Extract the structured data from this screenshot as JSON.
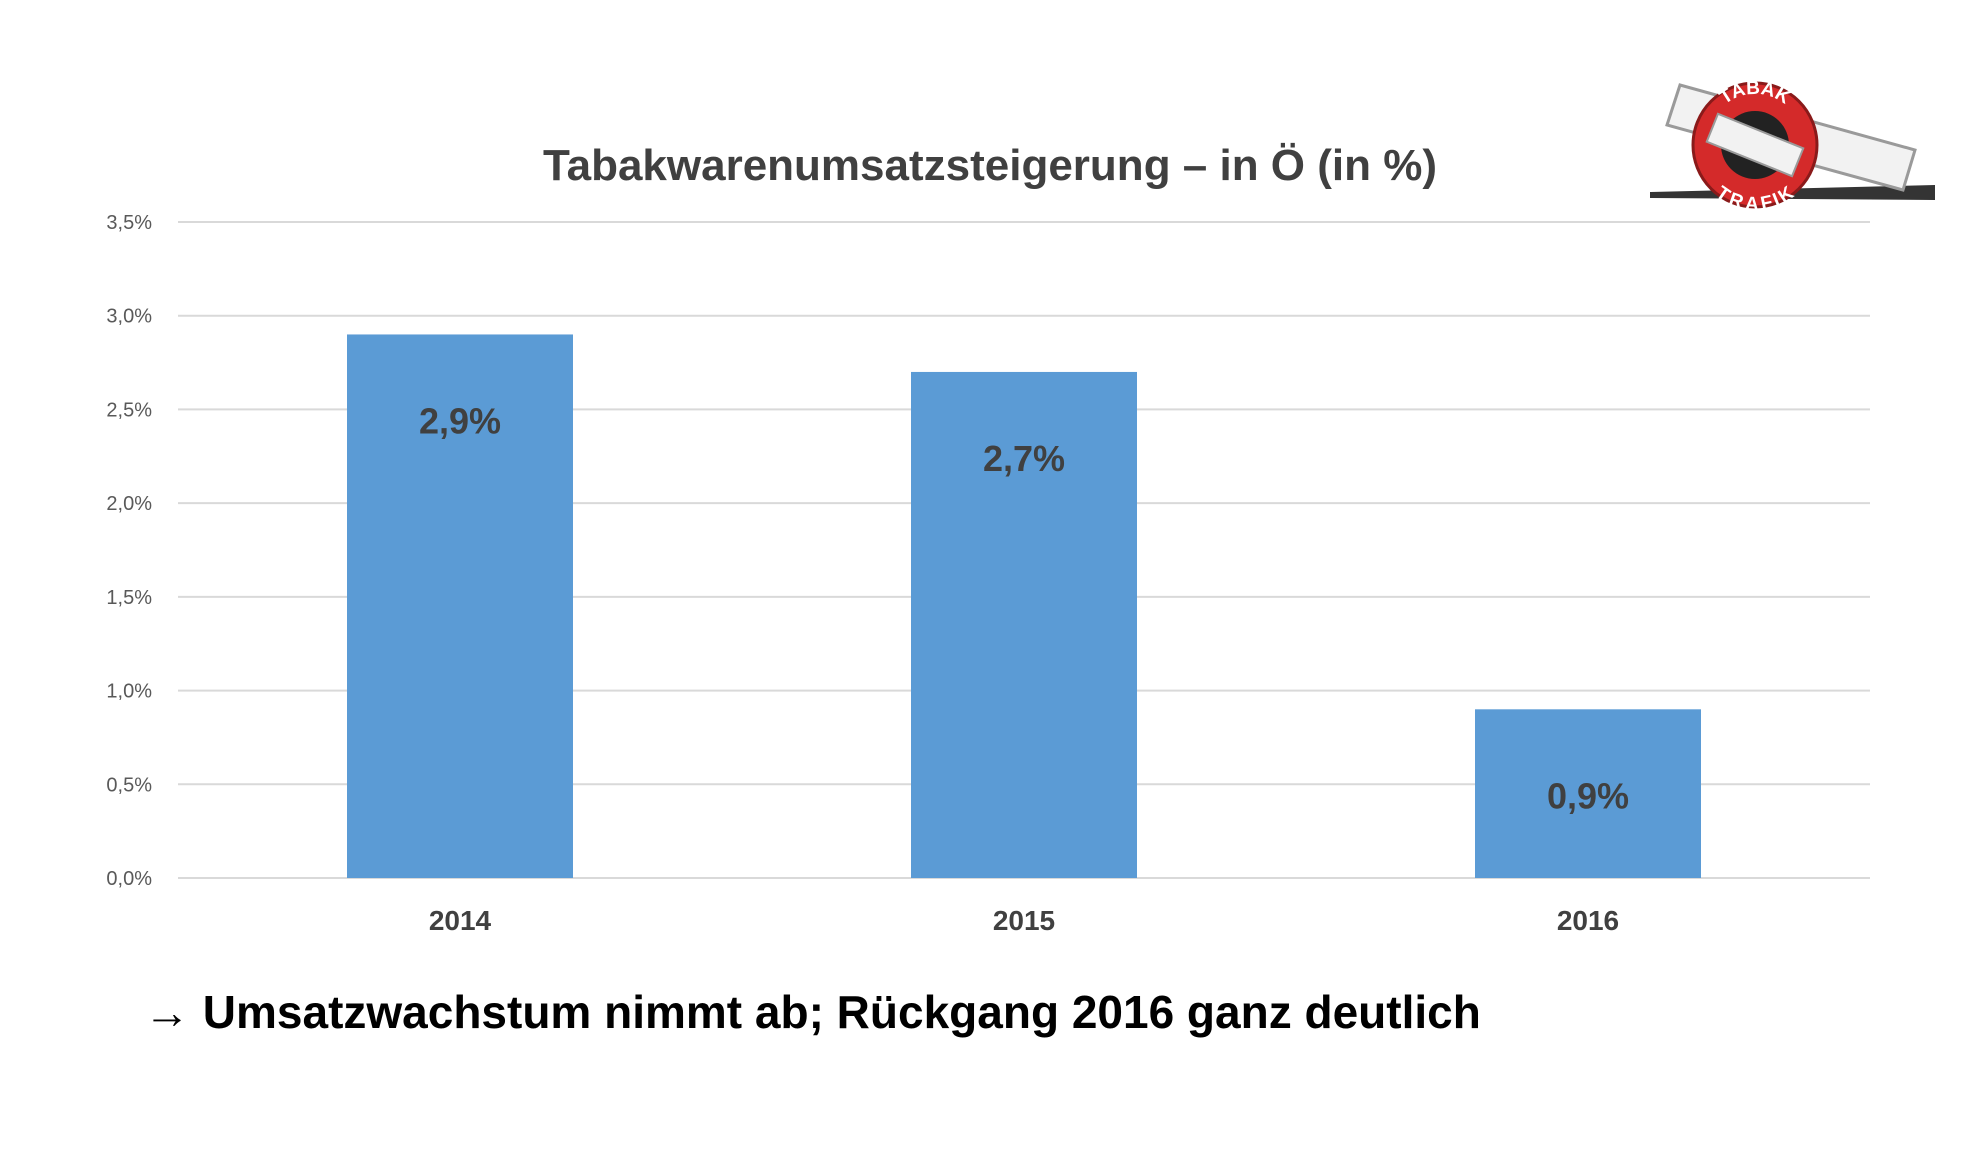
{
  "chart_data": {
    "type": "bar",
    "title": "Tabakwarenumsatzsteigerung – in Ö (in %)",
    "categories": [
      "2014",
      "2015",
      "2016"
    ],
    "values": [
      2.9,
      2.7,
      0.9
    ],
    "value_labels": [
      "2,9%",
      "2,7%",
      "0,9%"
    ],
    "ylim": [
      0,
      3.5
    ],
    "yticks": [
      0,
      0.5,
      1.0,
      1.5,
      2.0,
      2.5,
      3.0,
      3.5
    ],
    "ytick_labels": [
      "0,0%",
      "0,5%",
      "1,0%",
      "1,5%",
      "2,0%",
      "2,5%",
      "3,0%",
      "3,5%"
    ],
    "xlabel": "",
    "ylabel": "",
    "grid": true,
    "legend": "none",
    "bar_color": "#5B9BD5"
  },
  "conclusion": "Umsatzwachstum nimmt ab; Rückgang 2016 ganz deutlich",
  "conclusion_arrow": "→",
  "logo": {
    "icon": "tabak-trafik-logo-icon",
    "text_top": "TABAK",
    "text_bottom": "TRAFIK",
    "colors": {
      "red": "#D42A2A",
      "dark": "#222222",
      "white": "#FFFFFF"
    }
  }
}
